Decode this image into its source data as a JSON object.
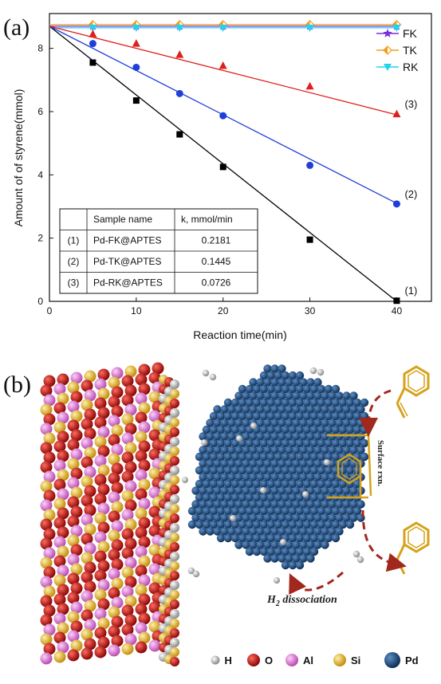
{
  "panel_a_label": "(a)",
  "panel_b_label": "(b)",
  "chart_data": {
    "type": "scatter",
    "xlabel": "Reaction time(min)",
    "ylabel": "Amount of of styrene(mmol)",
    "xlim": [
      0,
      44
    ],
    "ylim": [
      0,
      9.1
    ],
    "xticks": [
      0,
      10,
      20,
      30,
      40
    ],
    "yticks": [
      0,
      2,
      4,
      6,
      8
    ],
    "grid": false,
    "legend_position": "top-right",
    "series": [
      {
        "name": "FK",
        "color": "#7a2fd9",
        "marker": "star",
        "fit": false,
        "x": [
          0,
          5,
          10,
          15,
          20,
          30,
          40
        ],
        "y": [
          8.7,
          8.7,
          8.7,
          8.7,
          8.7,
          8.7,
          8.7
        ]
      },
      {
        "name": "TK",
        "color": "#f39c19",
        "marker": "half-diamond",
        "fit": false,
        "x": [
          0,
          5,
          10,
          15,
          20,
          30,
          40
        ],
        "y": [
          8.75,
          8.75,
          8.75,
          8.75,
          8.75,
          8.75,
          8.75
        ]
      },
      {
        "name": "RK",
        "color": "#22d3ee",
        "marker": "triangle-down",
        "fit": false,
        "x": [
          0,
          5,
          10,
          15,
          20,
          30,
          40
        ],
        "y": [
          8.65,
          8.65,
          8.65,
          8.65,
          8.65,
          8.65,
          8.65
        ]
      },
      {
        "label": "(1)",
        "color": "#000000",
        "marker": "square",
        "fit": true,
        "fit_end": [
          40,
          0
        ],
        "x": [
          0,
          5,
          10,
          15,
          20,
          30,
          40
        ],
        "y": [
          8.7,
          7.55,
          6.35,
          5.28,
          4.25,
          1.95,
          0.02
        ]
      },
      {
        "label": "(2)",
        "color": "#1f3fd9",
        "marker": "circle",
        "fit": true,
        "fit_end": [
          40,
          3.1
        ],
        "x": [
          0,
          5,
          10,
          15,
          20,
          30,
          40
        ],
        "y": [
          8.7,
          8.15,
          7.4,
          6.57,
          5.87,
          4.3,
          3.08
        ]
      },
      {
        "label": "(3)",
        "color": "#e0201c",
        "marker": "triangle-up",
        "fit": true,
        "fit_end": [
          40,
          5.9
        ],
        "x": [
          0,
          5,
          10,
          15,
          20,
          30,
          40
        ],
        "y": [
          8.7,
          8.45,
          8.15,
          7.8,
          7.45,
          6.8,
          5.92
        ]
      }
    ],
    "table": {
      "headers": [
        "",
        "Sample name",
        "k, mmol/min"
      ],
      "rows": [
        [
          "(1)",
          "Pd-FK@APTES",
          "0.2181"
        ],
        [
          "(2)",
          "Pd-TK@APTES",
          "0.1445"
        ],
        [
          "(3)",
          "Pd-RK@APTES",
          "0.0726"
        ]
      ]
    }
  },
  "schematic": {
    "surface_label": "Surface rxn.",
    "dissociation_label": "H",
    "dissociation_sub": "2",
    "dissociation_rest": " dissociation",
    "colors": {
      "H": "#d8d8d8",
      "O": "#cc1414",
      "Al": "#e87ee0",
      "Si": "#f2c12e",
      "Pd": "#1f4f82",
      "arrow": "#a1281c",
      "molecule": "#d6a21a"
    },
    "legend": [
      {
        "symbol": "H",
        "color": "#d8d8d8"
      },
      {
        "symbol": "O",
        "color": "#cc1414"
      },
      {
        "symbol": "Al",
        "color": "#e87ee0"
      },
      {
        "symbol": "Si",
        "color": "#f2c12e"
      },
      {
        "symbol": "Pd",
        "color": "#1f4f82"
      }
    ]
  }
}
